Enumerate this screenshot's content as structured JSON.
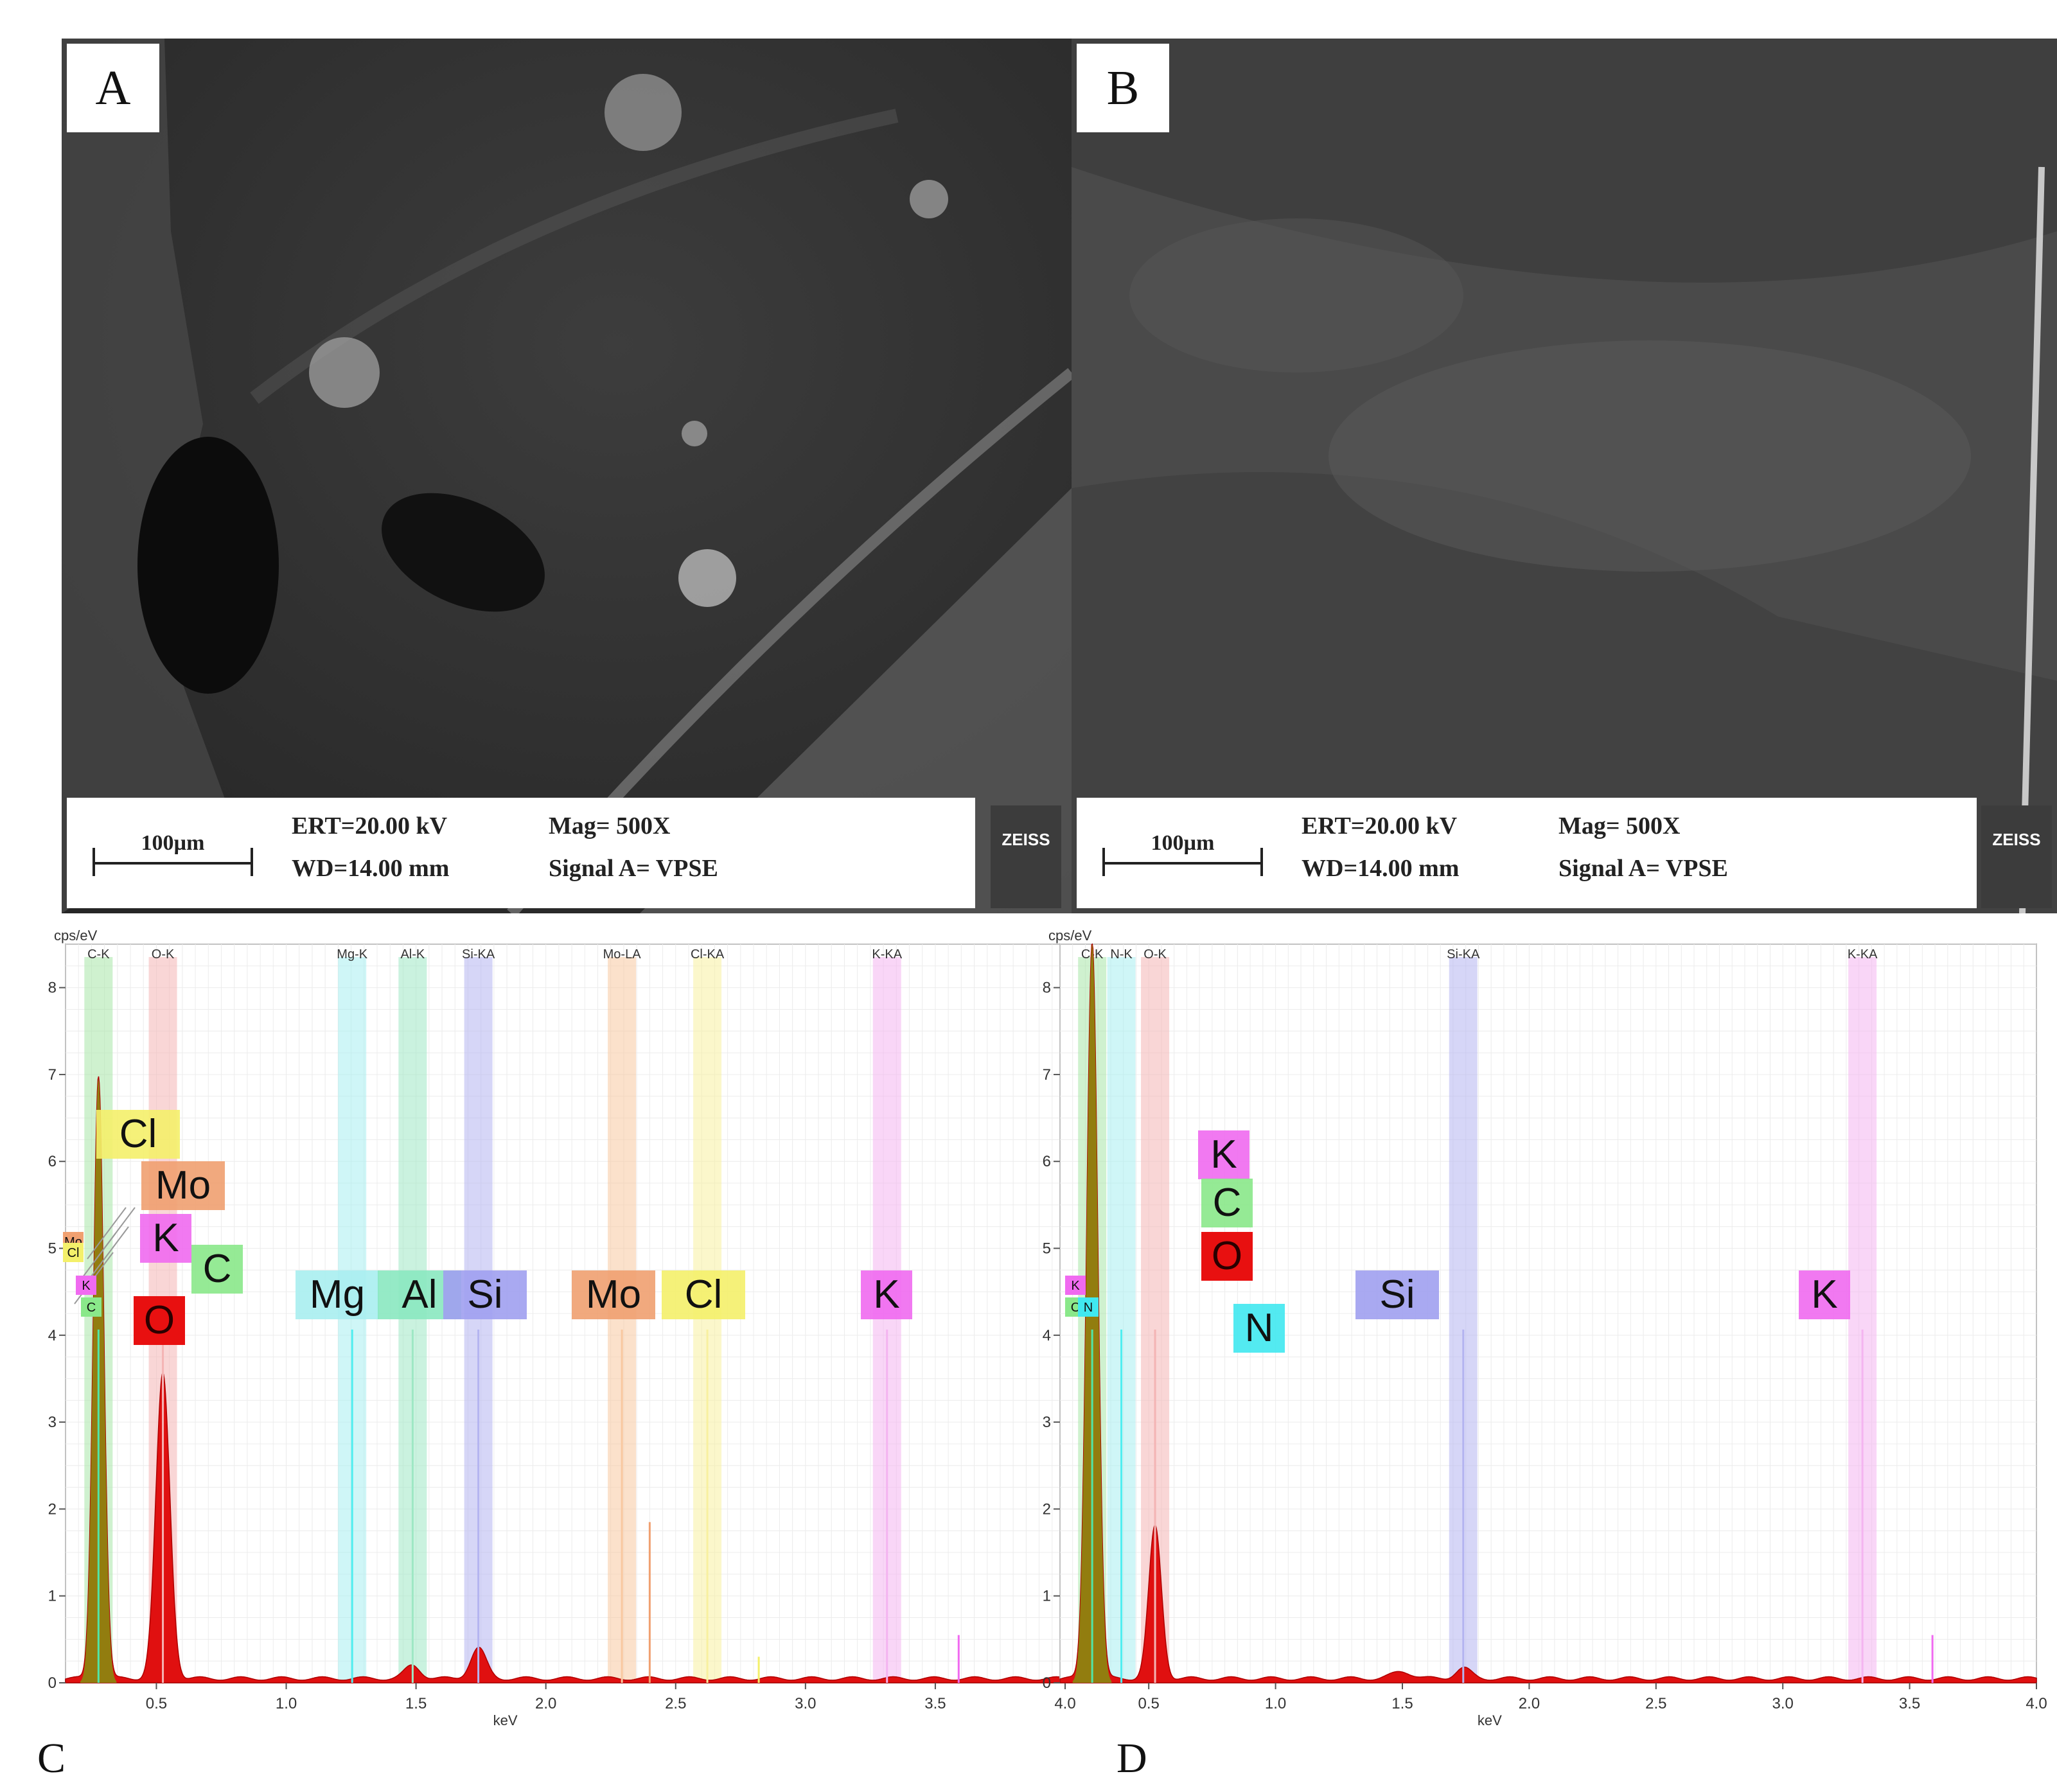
{
  "sem_panels": [
    {
      "label": "A",
      "scale_bar": "100µm",
      "ert": "ERT=20.00 kV",
      "wd": "WD=14.00 mm",
      "mag": "Mag=  500X",
      "signal": "Signal A= VPSE",
      "logo": "ZEISS"
    },
    {
      "label": "B",
      "scale_bar": "100µm",
      "ert": "ERT=20.00 kV",
      "wd": "WD=14.00 mm",
      "mag": "Mag=  500X",
      "signal": "Signal A= VPSE",
      "logo": "ZEISS"
    }
  ],
  "spectrum_labels": {
    "C": "C",
    "D": "D"
  },
  "chart_data": [
    {
      "type": "area",
      "panel": "C",
      "xlabel": "keV",
      "ylabel": "cps/eV",
      "xlim": [
        0.15,
        4.0
      ],
      "ylim": [
        0,
        8.5
      ],
      "xticks": [
        "0.5",
        "1.0",
        "1.5",
        "2.0",
        "2.5",
        "3.0",
        "3.5",
        "4.0"
      ],
      "yticks": [
        "0",
        "1",
        "2",
        "3",
        "4",
        "5",
        "6",
        "7",
        "8"
      ],
      "element_lines": [
        {
          "label": "C-K",
          "energy": 0.277,
          "color": "#a8e6a8"
        },
        {
          "label": "O-K",
          "energy": 0.525,
          "color": "#f4b4b4"
        },
        {
          "label": "Mg-K",
          "energy": 1.254,
          "color": "#a8eef0"
        },
        {
          "label": "Al-K",
          "energy": 1.487,
          "color": "#9ee8c4"
        },
        {
          "label": "Si-KA",
          "energy": 1.74,
          "color": "#b4b4f0"
        },
        {
          "label": "Mo-LA",
          "energy": 2.293,
          "color": "#f8c8a0"
        },
        {
          "label": "Cl-KA",
          "energy": 2.622,
          "color": "#f8f0a0"
        },
        {
          "label": "K-KA",
          "energy": 3.314,
          "color": "#f4b4f0"
        }
      ],
      "peaks": [
        {
          "energy": 0.277,
          "value": 6.95,
          "width": 0.02
        },
        {
          "energy": 0.525,
          "value": 3.5,
          "width": 0.027
        },
        {
          "energy": 1.487,
          "value": 0.15,
          "width": 0.03
        },
        {
          "energy": 1.74,
          "value": 0.35,
          "width": 0.03
        }
      ],
      "markers": [
        {
          "label": "Cl",
          "fill": "#f4f06a"
        },
        {
          "label": "Mo",
          "fill": "#f0a070"
        },
        {
          "label": "K",
          "fill": "#f06af0"
        },
        {
          "label": "C",
          "fill": "#8ae88a"
        },
        {
          "label": "O",
          "fill": "#e81010"
        },
        {
          "label": "Mg",
          "fill": "#a8eef0"
        },
        {
          "label": "Al",
          "fill": "#8ae8c0"
        },
        {
          "label": "Si",
          "fill": "#a0a0f0"
        },
        {
          "label": "Mo",
          "fill": "#f0a070"
        },
        {
          "label": "Cl",
          "fill": "#f4f06a"
        },
        {
          "label": "K",
          "fill": "#f06af0"
        }
      ],
      "small_markers": [
        {
          "label": "Mo",
          "fill": "#f0a070"
        },
        {
          "label": "Cl",
          "fill": "#f4f06a"
        },
        {
          "label": "K",
          "fill": "#f06af0"
        },
        {
          "label": "C",
          "fill": "#8ae88a"
        }
      ],
      "minor_lines": [
        {
          "energy": 2.4,
          "value": 1.85,
          "color": "#f0a070"
        },
        {
          "energy": 3.59,
          "value": 0.55,
          "color": "#f06af0"
        },
        {
          "energy": 2.82,
          "value": 0.3,
          "color": "#f4f06a"
        }
      ]
    },
    {
      "type": "area",
      "panel": "D",
      "xlabel": "keV",
      "ylabel": "cps/eV",
      "xlim": [
        0.15,
        4.0
      ],
      "ylim": [
        0,
        8.5
      ],
      "xticks": [
        "0.5",
        "1.0",
        "1.5",
        "2.0",
        "2.5",
        "3.0",
        "3.5",
        "4.0"
      ],
      "yticks": [
        "0",
        "1",
        "2",
        "3",
        "4",
        "5",
        "6",
        "7",
        "8"
      ],
      "element_lines": [
        {
          "label": "C-K",
          "energy": 0.277,
          "color": "#a8e6a8"
        },
        {
          "label": "N-K",
          "energy": 0.392,
          "color": "#a8eef0"
        },
        {
          "label": "O-K",
          "energy": 0.525,
          "color": "#f4b4b4"
        },
        {
          "label": "Si-KA",
          "energy": 1.74,
          "color": "#b4b4f0"
        },
        {
          "label": "K-KA",
          "energy": 3.314,
          "color": "#f4b4f0"
        }
      ],
      "peaks": [
        {
          "energy": 0.277,
          "value": 8.5,
          "width": 0.022
        },
        {
          "energy": 0.525,
          "value": 1.75,
          "width": 0.025
        },
        {
          "energy": 1.5,
          "value": 0.08,
          "width": 0.04
        },
        {
          "energy": 1.74,
          "value": 0.12,
          "width": 0.03
        }
      ],
      "markers": [
        {
          "label": "K",
          "fill": "#f06af0"
        },
        {
          "label": "C",
          "fill": "#8ae88a"
        },
        {
          "label": "O",
          "fill": "#e81010"
        },
        {
          "label": "N",
          "fill": "#40e8f0"
        },
        {
          "label": "Si",
          "fill": "#a0a0f0"
        },
        {
          "label": "K",
          "fill": "#f06af0"
        }
      ],
      "small_markers": [
        {
          "label": "K",
          "fill": "#f06af0"
        },
        {
          "label": "C",
          "fill": "#8ae88a"
        },
        {
          "label": "N",
          "fill": "#40e8f0"
        }
      ],
      "minor_lines": [
        {
          "energy": 3.59,
          "value": 0.55,
          "color": "#f06af0"
        }
      ]
    }
  ]
}
